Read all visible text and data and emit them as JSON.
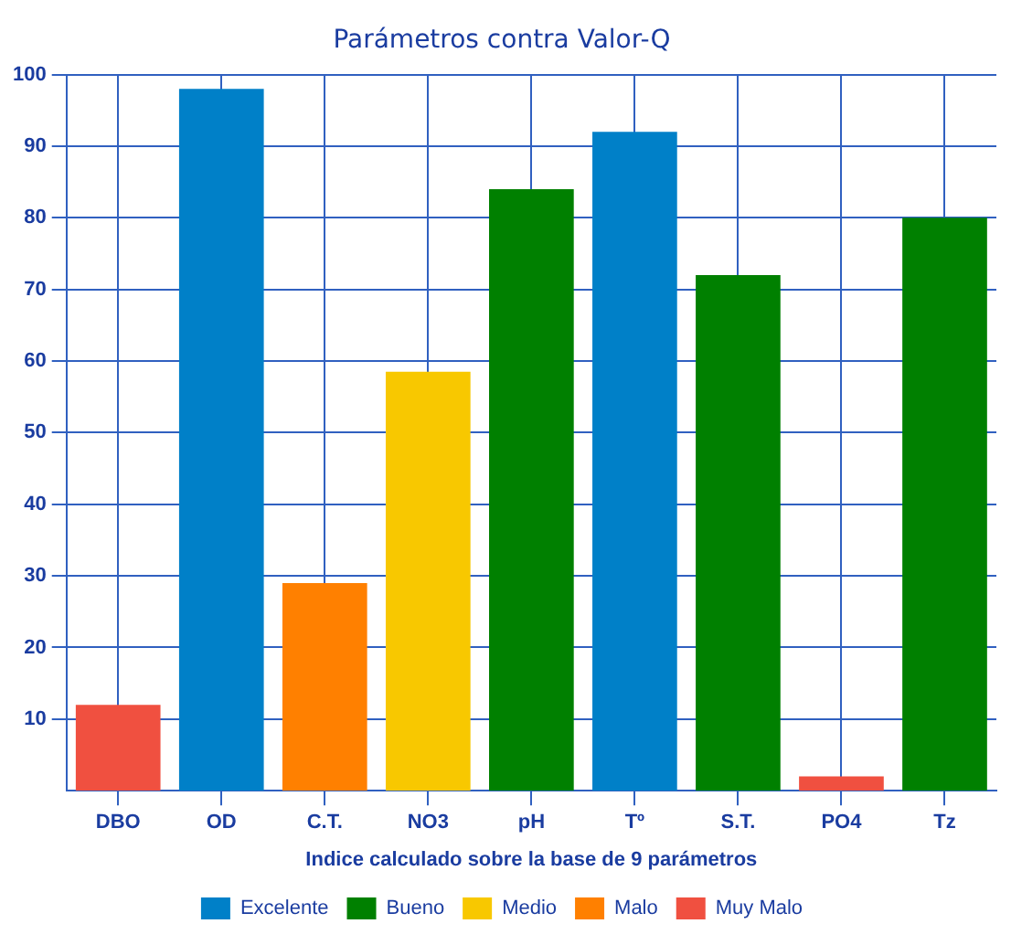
{
  "chart_data": {
    "type": "bar",
    "subtitle": "Parámetros contra Valor-Q",
    "xlabel": "Indice calculado sobre la base de 9 parámetros",
    "categories": [
      "DBO",
      "OD",
      "C.T.",
      "NO3",
      "pH",
      "Tº",
      "S.T.",
      "PO4",
      "Tz"
    ],
    "series": [
      {
        "name": "Excelente",
        "color": "#0080c8",
        "values": [
          null,
          98,
          null,
          null,
          null,
          92,
          null,
          null,
          null
        ]
      },
      {
        "name": "Bueno",
        "color": "#008000",
        "values": [
          null,
          null,
          null,
          null,
          84,
          null,
          72,
          null,
          80
        ]
      },
      {
        "name": "Medio",
        "color": "#f8c800",
        "values": [
          null,
          null,
          null,
          58.5,
          null,
          null,
          null,
          null,
          null
        ]
      },
      {
        "name": "Malo",
        "color": "#ff8000",
        "values": [
          null,
          null,
          29,
          null,
          null,
          null,
          null,
          null,
          null
        ]
      },
      {
        "name": "Muy Malo",
        "color": "#f05040",
        "values": [
          12,
          null,
          null,
          null,
          null,
          null,
          null,
          2,
          null
        ]
      }
    ],
    "ylim": [
      0,
      100
    ],
    "yticks": [
      10,
      20,
      30,
      40,
      50,
      60,
      70,
      80,
      90,
      100
    ],
    "grid": true,
    "legend": "bottom"
  }
}
